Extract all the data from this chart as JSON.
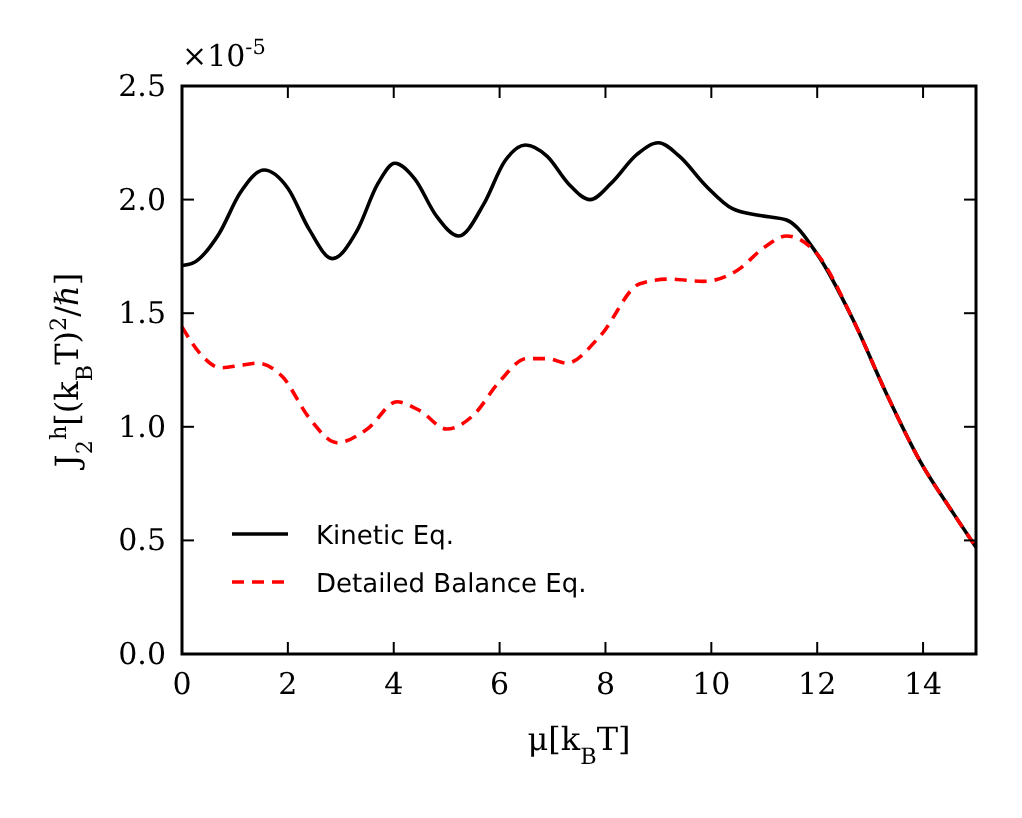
{
  "chart_data": {
    "type": "line",
    "xlabel": "μ[k$_{B}$T]",
    "ylabel": "J$_{2}$$^{h}$[(k$_{B}$T)$^{2}$/ℏ]",
    "annotations": [
      "×10$^{-5}$"
    ],
    "xlim": [
      0,
      15
    ],
    "xticks": [
      0,
      2,
      4,
      6,
      8,
      10,
      12,
      14
    ],
    "ylim": [
      0,
      2.5
    ],
    "yticks": [
      {
        "value": 0,
        "label": "0.0"
      },
      0.5,
      {
        "value": 1,
        "label": "1.0"
      },
      1.5,
      {
        "value": 2,
        "label": "2.0"
      },
      2.5
    ],
    "grid": false,
    "legend": "bottom left",
    "marker": "none",
    "series": [
      {
        "name": "Kinetic Eq.",
        "color": "#000000",
        "line_style": "solid",
        "x": [
          0,
          0.2,
          0.7,
          1.1,
          1.55,
          2.0,
          2.4,
          2.84,
          3.3,
          3.7,
          4.02,
          4.4,
          4.8,
          5.23,
          5.7,
          6.1,
          6.49,
          6.9,
          7.3,
          7.71,
          8.1,
          8.6,
          9.0,
          9.4,
          9.9,
          10.4,
          10.92,
          11.42,
          12.0,
          12.68,
          13.3,
          13.94,
          14.57,
          15
        ],
        "values": [
          1.71,
          1.72,
          1.85,
          2.03,
          2.13,
          2.05,
          1.87,
          1.74,
          1.86,
          2.07,
          2.16,
          2.09,
          1.93,
          1.84,
          1.98,
          2.17,
          2.24,
          2.19,
          2.07,
          2.0,
          2.07,
          2.2,
          2.25,
          2.19,
          2.06,
          1.96,
          1.93,
          1.91,
          1.76,
          1.47,
          1.15,
          0.85,
          0.62,
          0.47
        ]
      },
      {
        "name": "Detailed Balance Eq.",
        "color": "#ff0000",
        "line_style": "dashed",
        "x": [
          0,
          0.35,
          0.73,
          1.1,
          1.42,
          1.9,
          2.4,
          2.93,
          3.5,
          4.06,
          4.5,
          5.0,
          5.5,
          6.0,
          6.51,
          6.9,
          7.27,
          7.9,
          8.65,
          9.2,
          9.85,
          10.5,
          11.0,
          11.42,
          12.0,
          12.68,
          13.3,
          13.94,
          14.57,
          15
        ],
        "values": [
          1.44,
          1.32,
          1.26,
          1.27,
          1.28,
          1.22,
          1.04,
          0.93,
          0.99,
          1.11,
          1.07,
          0.99,
          1.05,
          1.2,
          1.3,
          1.3,
          1.28,
          1.4,
          1.63,
          1.65,
          1.64,
          1.69,
          1.79,
          1.84,
          1.76,
          1.47,
          1.15,
          0.85,
          0.62,
          0.47
        ]
      }
    ]
  }
}
